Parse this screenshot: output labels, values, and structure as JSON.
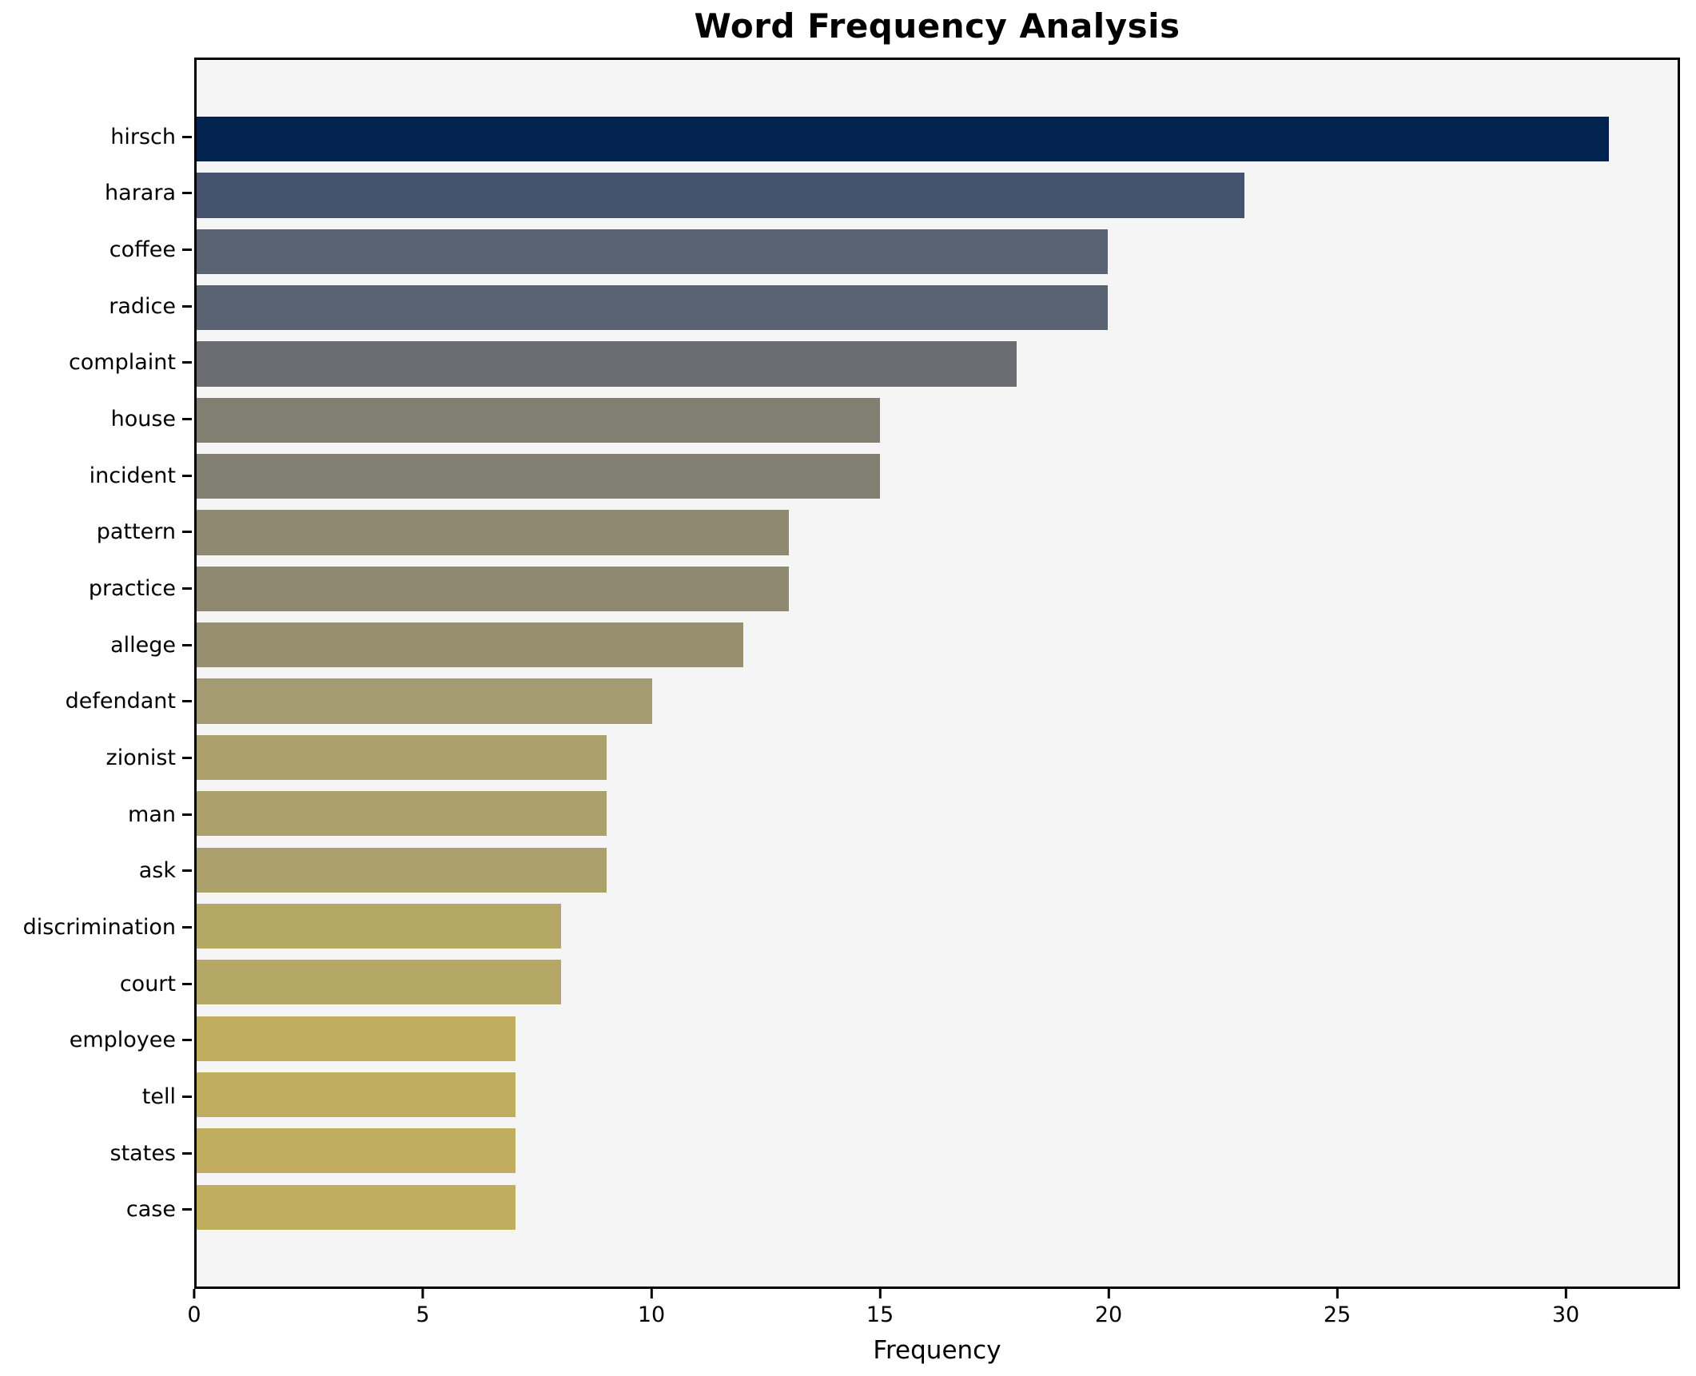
{
  "chart_data": {
    "type": "bar",
    "orientation": "horizontal",
    "title": "Word Frequency Analysis",
    "xlabel": "Frequency",
    "ylabel": "",
    "categories": [
      "hirsch",
      "harara",
      "coffee",
      "radice",
      "complaint",
      "house",
      "incident",
      "pattern",
      "practice",
      "allege",
      "defendant",
      "zionist",
      "man",
      "ask",
      "discrimination",
      "court",
      "employee",
      "tell",
      "states",
      "case"
    ],
    "values": [
      31,
      23,
      20,
      20,
      18,
      15,
      15,
      13,
      13,
      12,
      10,
      9,
      9,
      9,
      8,
      8,
      7,
      7,
      7,
      7
    ],
    "bar_colors": [
      "#01234E",
      "#45536E",
      "#5A6372",
      "#5A6372",
      "#6A6C72",
      "#807F72",
      "#807F72",
      "#8F8971",
      "#8F8971",
      "#96906F",
      "#A59B73",
      "#ACA16C",
      "#ACA16C",
      "#ACA16C",
      "#B5A866",
      "#B5A866",
      "#C0AD60",
      "#C0AD60",
      "#C0AD60",
      "#C0AD60"
    ],
    "x_ticks": [
      0,
      5,
      10,
      15,
      20,
      25,
      30
    ],
    "xlim": [
      0,
      32.5
    ],
    "grid": false,
    "legend": false,
    "plot_background": "#f5f5f6",
    "spine_color": "#000000"
  }
}
